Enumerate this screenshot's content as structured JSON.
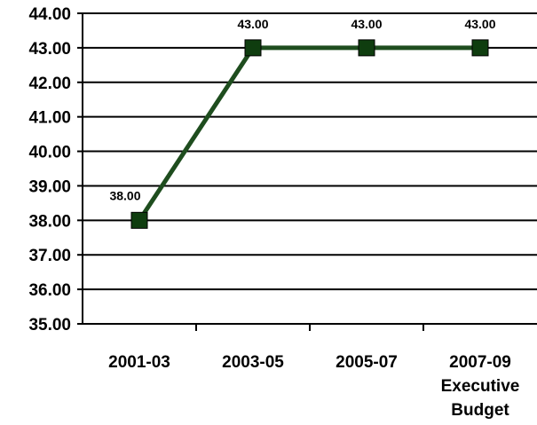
{
  "chart_data": {
    "type": "line",
    "title": "",
    "xlabel": "",
    "ylabel": "",
    "categories": [
      [
        "2001-03"
      ],
      [
        "2003-05"
      ],
      [
        "2005-07"
      ],
      [
        "2007-09",
        "Executive",
        "Budget"
      ]
    ],
    "series": [
      {
        "values": [
          38.0,
          43.0,
          43.0,
          43.0
        ],
        "data_labels": [
          "38.00",
          "43.00",
          "43.00",
          "43.00"
        ],
        "color": "#1e4d1e",
        "marker": "square"
      }
    ],
    "ylim": [
      35,
      44
    ],
    "yticks": [
      "35.00",
      "36.00",
      "37.00",
      "38.00",
      "39.00",
      "40.00",
      "41.00",
      "42.00",
      "43.00",
      "44.00"
    ],
    "grid": true,
    "legend": "none"
  }
}
